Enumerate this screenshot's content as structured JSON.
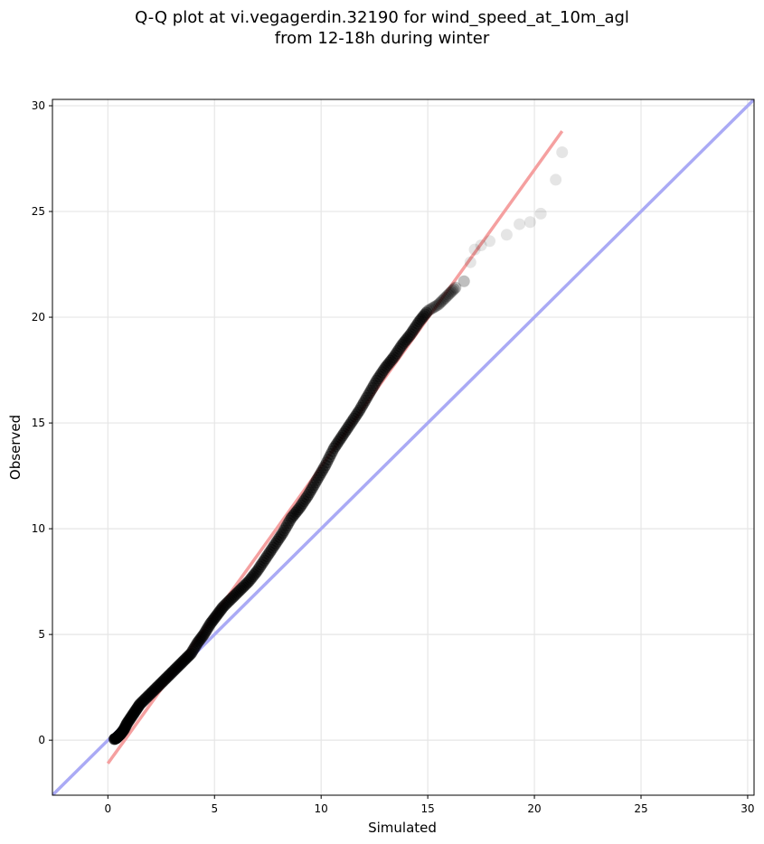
{
  "chart_data": {
    "type": "scatter",
    "title": "Q-Q plot at vi.vegagerdin.32190 for wind_speed_at_10m_agl",
    "subtitle": "from 12-18h during winter",
    "xlabel": "Simulated",
    "ylabel": "Observed",
    "xlim": [
      -2.6,
      30.3
    ],
    "ylim": [
      -2.6,
      30.3
    ],
    "xticks": [
      0,
      5,
      10,
      15,
      20,
      25,
      30
    ],
    "yticks": [
      0,
      5,
      10,
      15,
      20,
      25,
      30
    ],
    "grid": true,
    "reference_line": {
      "x": [
        -2.6,
        30.3
      ],
      "y": [
        -2.6,
        30.3
      ],
      "color": "#aaaaf5"
    },
    "fit_line": {
      "x": [
        0.0,
        21.3
      ],
      "y": [
        -1.1,
        28.8
      ],
      "color": "#f5a0a0"
    },
    "points": [
      [
        0.3,
        0.05
      ],
      [
        0.4,
        0.1
      ],
      [
        0.5,
        0.2
      ],
      [
        0.6,
        0.3
      ],
      [
        0.75,
        0.5
      ],
      [
        0.9,
        0.8
      ],
      [
        1.1,
        1.1
      ],
      [
        1.3,
        1.4
      ],
      [
        1.5,
        1.7
      ],
      [
        1.8,
        2.0
      ],
      [
        2.1,
        2.3
      ],
      [
        2.4,
        2.6
      ],
      [
        2.7,
        2.9
      ],
      [
        3.0,
        3.2
      ],
      [
        3.3,
        3.5
      ],
      [
        3.6,
        3.8
      ],
      [
        3.9,
        4.1
      ],
      [
        4.2,
        4.6
      ],
      [
        4.5,
        5.0
      ],
      [
        4.8,
        5.5
      ],
      [
        5.1,
        5.9
      ],
      [
        5.4,
        6.3
      ],
      [
        5.8,
        6.7
      ],
      [
        6.2,
        7.1
      ],
      [
        6.6,
        7.5
      ],
      [
        7.0,
        8.0
      ],
      [
        7.4,
        8.6
      ],
      [
        7.8,
        9.2
      ],
      [
        8.2,
        9.8
      ],
      [
        8.6,
        10.5
      ],
      [
        9.0,
        11.0
      ],
      [
        9.4,
        11.6
      ],
      [
        9.8,
        12.3
      ],
      [
        10.2,
        13.0
      ],
      [
        10.6,
        13.8
      ],
      [
        11.0,
        14.4
      ],
      [
        11.4,
        15.0
      ],
      [
        11.8,
        15.6
      ],
      [
        12.2,
        16.3
      ],
      [
        12.6,
        17.0
      ],
      [
        13.0,
        17.6
      ],
      [
        13.4,
        18.1
      ],
      [
        13.8,
        18.7
      ],
      [
        14.2,
        19.2
      ],
      [
        14.6,
        19.8
      ],
      [
        15.0,
        20.3
      ],
      [
        15.5,
        20.6
      ],
      [
        15.9,
        21.0
      ],
      [
        16.3,
        21.4
      ],
      [
        16.7,
        21.7
      ],
      [
        17.0,
        22.6
      ],
      [
        17.2,
        23.2
      ],
      [
        17.5,
        23.4
      ],
      [
        17.9,
        23.6
      ],
      [
        18.7,
        23.9
      ],
      [
        19.3,
        24.4
      ],
      [
        19.8,
        24.5
      ],
      [
        20.3,
        24.9
      ],
      [
        21.0,
        26.5
      ],
      [
        21.3,
        27.8
      ]
    ]
  }
}
